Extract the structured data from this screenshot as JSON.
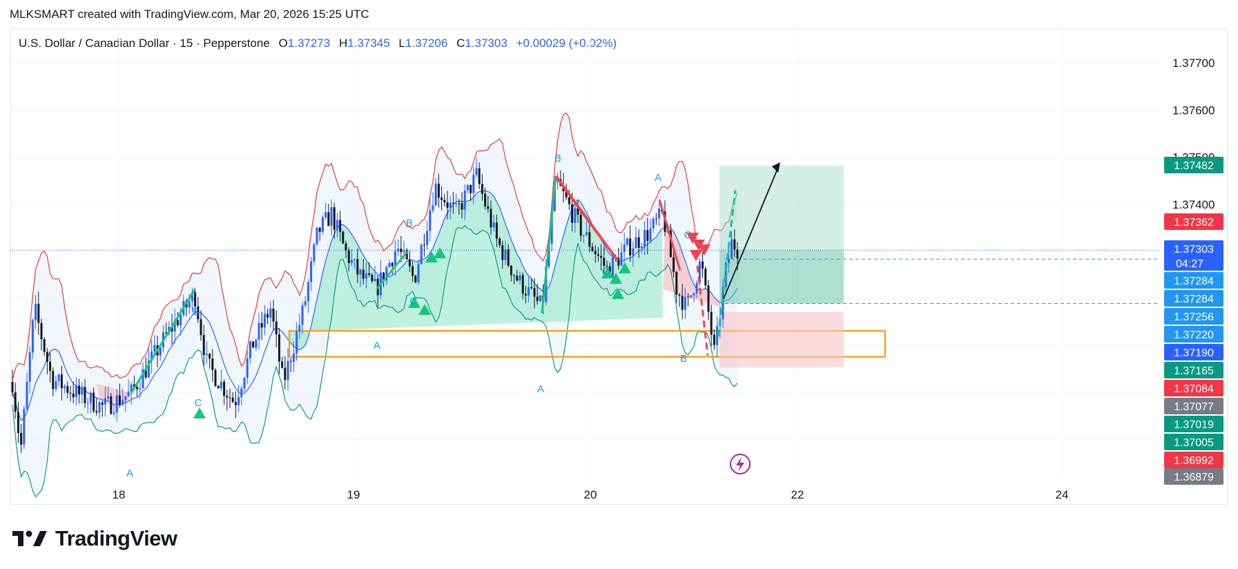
{
  "caption": "MLKSMART created with TradingView.com, Mar 20, 2026 15:25 UTC",
  "legend": {
    "symbol": "U.S. Dollar / Canadian Dollar · 15 · Pepperstone",
    "o_label": "O",
    "o": "1.37273",
    "h_label": "H",
    "h": "1.37345",
    "l_label": "L",
    "l": "1.37206",
    "c_label": "C",
    "c": "1.37303",
    "change": "+0.00029 (+0.02%)"
  },
  "brand": "TradingView",
  "colors": {
    "up": "#2962ff",
    "down": "#131722",
    "band_upper": "#e03a3e",
    "band_mid": "#2962ff",
    "band_lower": "#089981",
    "cloud_green": "#8de6c4",
    "cloud_red": "#f7b5b8",
    "zone": "#f7a21b",
    "target": "#9fd9c6",
    "stop": "#f8c5c8",
    "pattern_label": "#2196f3",
    "signal_up": "#14c77e",
    "signal_down": "#ef4351",
    "current_price_line": "#2962ff"
  },
  "chart_data": {
    "type": "candlestick",
    "y_axis": {
      "min": 1.3687,
      "max": 1.3784,
      "ticks": [
        "1.37700",
        "1.37600",
        "1.37500",
        "1.37400"
      ]
    },
    "x_axis": {
      "ticks": [
        "18",
        "19",
        "20",
        "22",
        "24"
      ]
    },
    "price_labels": [
      {
        "value": "1.37482",
        "color": "#089981"
      },
      {
        "value": "1.37362",
        "color": "#f23645"
      },
      {
        "value": "1.37303",
        "sub": "04:27",
        "color": "#2962ff"
      },
      {
        "value": "1.37284",
        "color": "#2196f3"
      },
      {
        "value": "1.37284",
        "color": "#2196f3"
      },
      {
        "value": "1.37256",
        "color": "#2196f3"
      },
      {
        "value": "1.37220",
        "color": "#2196f3"
      },
      {
        "value": "1.37190",
        "color": "#2962ff"
      },
      {
        "value": "1.37165",
        "color": "#089981"
      },
      {
        "value": "1.37084",
        "color": "#f23645"
      },
      {
        "value": "1.37077",
        "color": "#787b86"
      },
      {
        "value": "1.37019",
        "color": "#089981"
      },
      {
        "value": "1.37005",
        "color": "#089981"
      },
      {
        "value": "1.36992",
        "color": "#f23645"
      },
      {
        "value": "1.36879",
        "color": "#787b86"
      }
    ],
    "pattern_labels": [
      "A",
      "B",
      "C"
    ],
    "position": {
      "entry": 1.3719,
      "target": 1.37482,
      "stop": 1.37084
    },
    "demand_zone": {
      "from": 1.37077,
      "to": 1.37132
    },
    "current_price": 1.37303
  }
}
